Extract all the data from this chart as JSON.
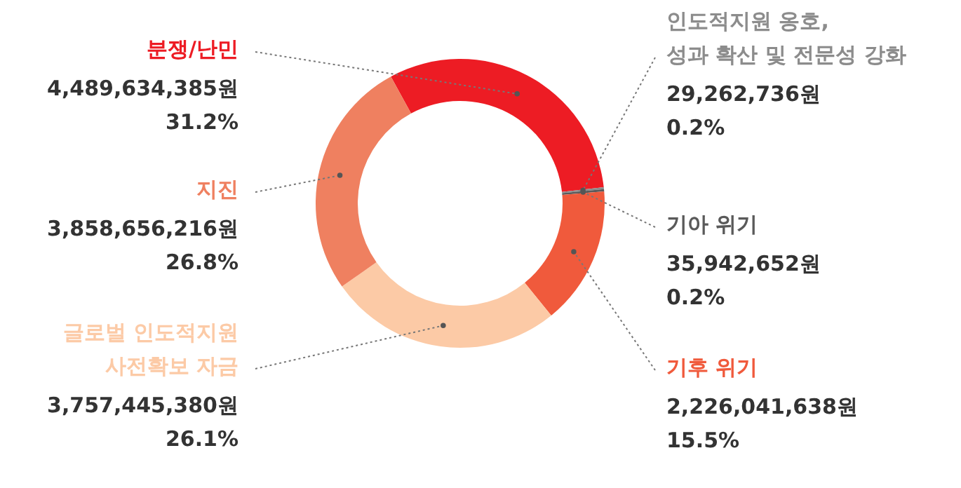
{
  "chart_data": {
    "type": "donut",
    "categories": [
      "분쟁/난민",
      "인도적지원 옹호,\n성과 확산 및 전문성 강화",
      "기아 위기",
      "기후 위기",
      "글로벌 인도적지원\n사전확보 자금",
      "지진"
    ],
    "values": [
      4489634385,
      29262736,
      35942652,
      2226041638,
      3757445380,
      3858656216
    ],
    "colors": [
      "#ed1c24",
      "#8c8c8c",
      "#5a5a5a",
      "#f05a3c",
      "#fccaa6",
      "#ef8060"
    ],
    "value_labels": [
      "4,489,634,385원\n31.2%",
      "29,262,736원\n0.2%",
      "35,942,652원\n0.2%",
      "2,226,041,638원\n15.5%",
      "3,757,445,380원\n26.1%",
      "3,858,656,216원\n26.8%"
    ]
  }
}
